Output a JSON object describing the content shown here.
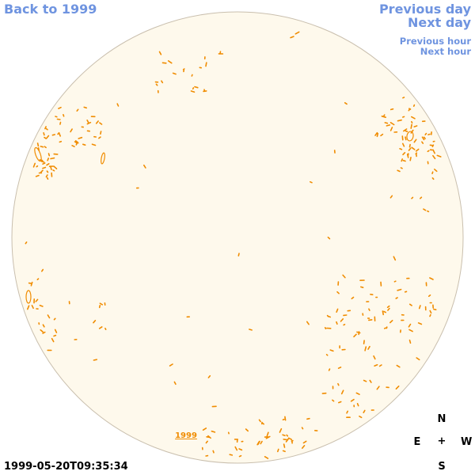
{
  "nav": {
    "back_label": "Back to 1999",
    "previous_day_label": "Previous day",
    "next_day_label": "Next day",
    "previous_hour_label": "Previous hour",
    "next_hour_label": "Next hour"
  },
  "timestamp": "1999-05-20T09:35:34",
  "disk": {
    "year_label": "1999",
    "fill_color": "#fef9ec",
    "border_color": "#c9bfae",
    "contour_color": "#f08c00"
  },
  "compass": {
    "north": "N",
    "east": "E",
    "center": "+",
    "west": "W",
    "south": "S"
  },
  "colors": {
    "link": "#6f94e0",
    "text": "#000000"
  }
}
